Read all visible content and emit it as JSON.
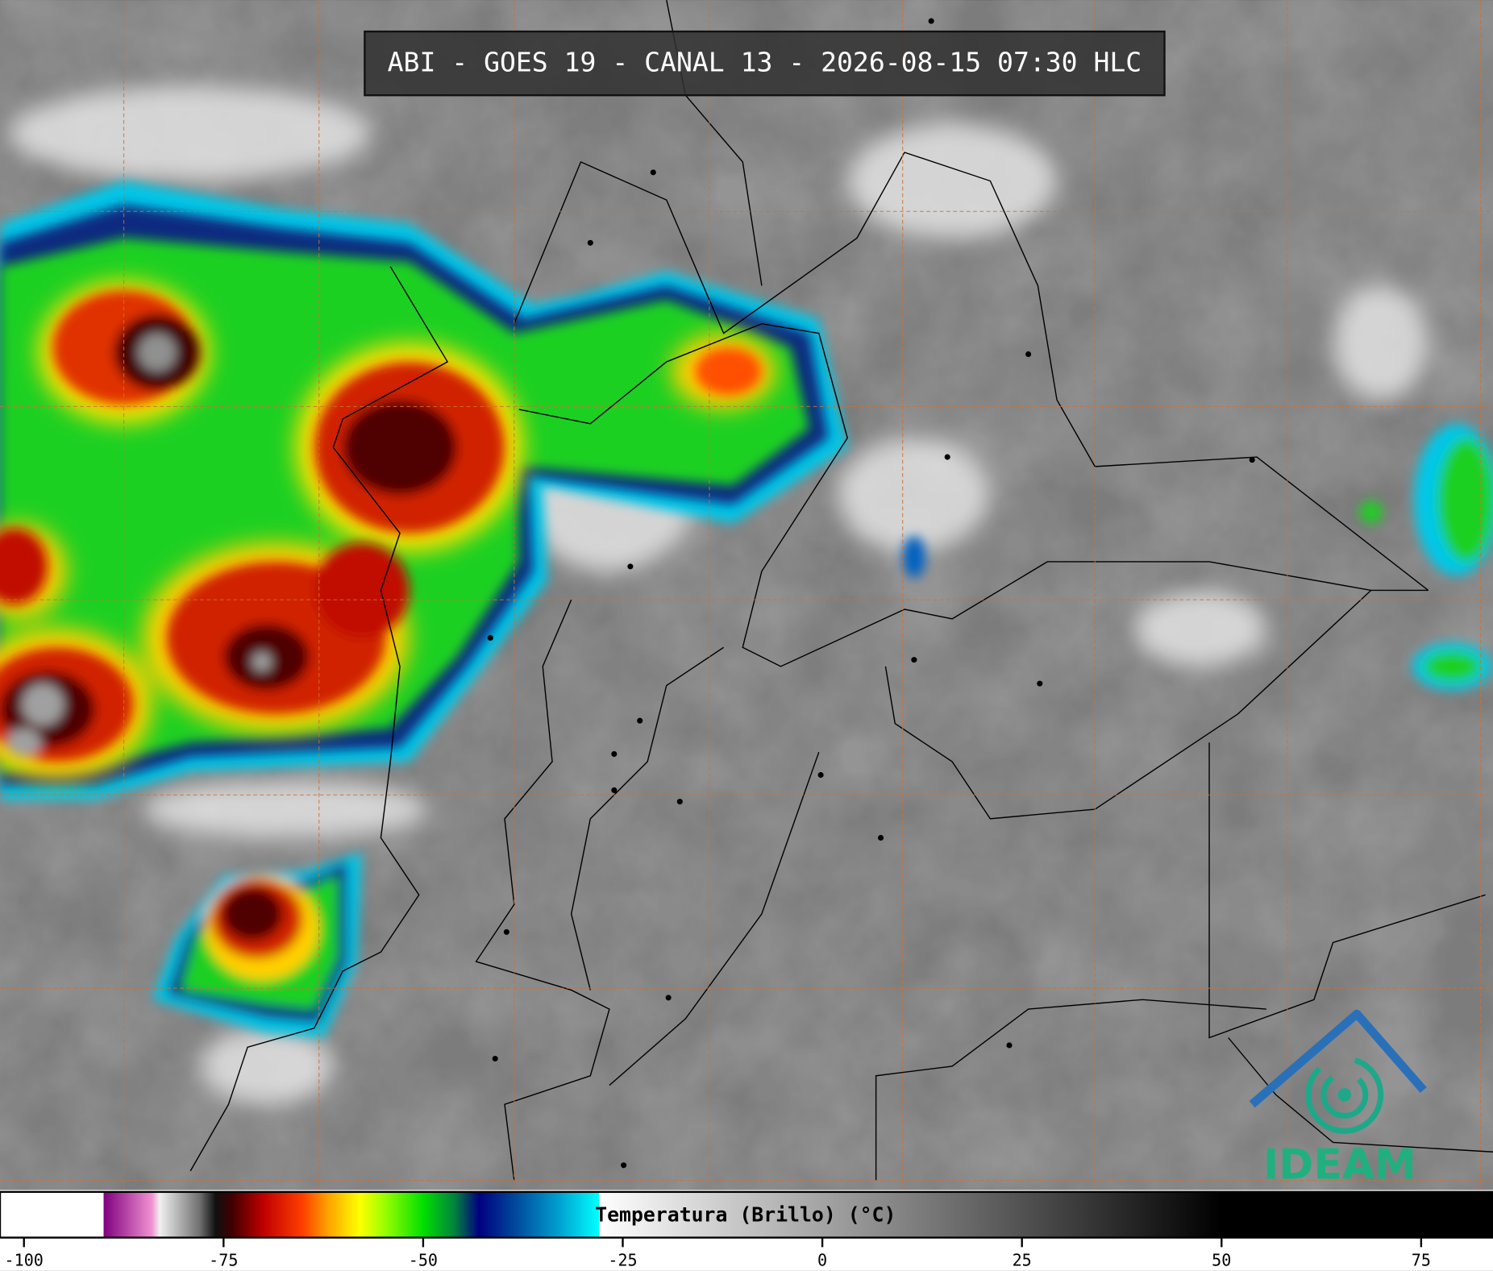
{
  "header": {
    "title": "ABI - GOES 19 - CANAL 13 - 2026-08-15 07:30 HLC"
  },
  "colorbar": {
    "label": "Temperatura (Brillo) (°C)",
    "range": [
      -103,
      84
    ],
    "ticks": [
      -100,
      -75,
      -50,
      -25,
      0,
      25,
      50,
      75
    ],
    "stops": [
      {
        "value": -103,
        "color": "#ffffff"
      },
      {
        "value": -90,
        "color": "#ffffff"
      },
      {
        "value": -90,
        "color": "#800080"
      },
      {
        "value": -84,
        "color": "#f090d0"
      },
      {
        "value": -83,
        "color": "#f0f0f0"
      },
      {
        "value": -78,
        "color": "#707070"
      },
      {
        "value": -76,
        "color": "#101010"
      },
      {
        "value": -74,
        "color": "#400000"
      },
      {
        "value": -70,
        "color": "#c00000"
      },
      {
        "value": -65,
        "color": "#ff4000"
      },
      {
        "value": -62,
        "color": "#ffa000"
      },
      {
        "value": -58,
        "color": "#ffff00"
      },
      {
        "value": -55,
        "color": "#a0ff00"
      },
      {
        "value": -50,
        "color": "#00e000"
      },
      {
        "value": -46,
        "color": "#008040"
      },
      {
        "value": -43,
        "color": "#000080"
      },
      {
        "value": -38,
        "color": "#0050a0"
      },
      {
        "value": -33,
        "color": "#00a0d0"
      },
      {
        "value": -28,
        "color": "#00ffff"
      },
      {
        "value": -28,
        "color": "#ffffff"
      },
      {
        "value": 50,
        "color": "#000000"
      },
      {
        "value": 84,
        "color": "#000000"
      }
    ]
  },
  "logo": {
    "text": "IDEAM"
  }
}
